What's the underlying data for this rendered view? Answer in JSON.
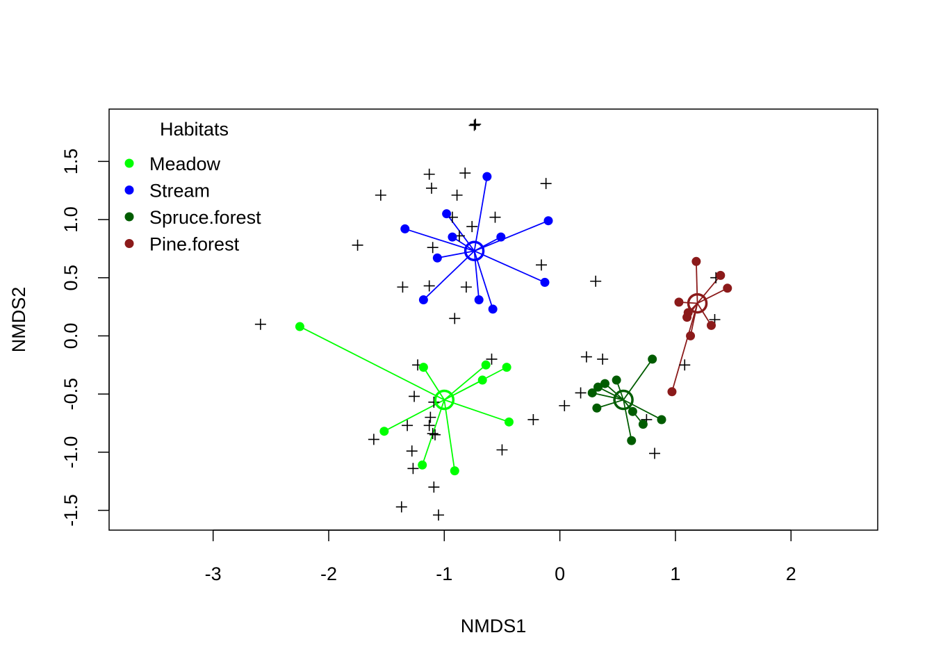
{
  "chart_data": {
    "type": "scatter",
    "title": "",
    "xlabel": "NMDS1",
    "ylabel": "NMDS2",
    "xlim": [
      -3.9,
      2.75
    ],
    "ylim": [
      -1.67,
      1.95
    ],
    "x_ticks": [
      -3,
      -2,
      -1,
      0,
      1,
      2
    ],
    "y_ticks": [
      -1.5,
      -1.0,
      -0.5,
      0.0,
      0.5,
      1.0,
      1.5
    ],
    "x_tick_labels": [
      "-3",
      "-2",
      "-1",
      "0",
      "1",
      "2"
    ],
    "y_tick_labels": [
      "-1.5",
      "-1.0",
      "-0.5",
      "0.0",
      "0.5",
      "1.0",
      "1.5"
    ],
    "grid": false,
    "legend": {
      "title": "Habitats",
      "placement": "top-left",
      "entries": [
        {
          "label": "Meadow",
          "color": "#00ff00"
        },
        {
          "label": "Stream",
          "color": "#0000ff"
        },
        {
          "label": "Spruce.forest",
          "color": "#005c00"
        },
        {
          "label": "Pine.forest",
          "color": "#8b1a1a"
        }
      ]
    },
    "series": [
      {
        "name": "Meadow",
        "color": "#00ff00",
        "centroid": [
          -1.0,
          -0.55
        ],
        "points": [
          [
            -2.25,
            0.08
          ],
          [
            -1.18,
            -0.27
          ],
          [
            -0.64,
            -0.25
          ],
          [
            -0.46,
            -0.27
          ],
          [
            -0.67,
            -0.38
          ],
          [
            -0.44,
            -0.74
          ],
          [
            -1.52,
            -0.82
          ],
          [
            -1.19,
            -1.11
          ],
          [
            -0.91,
            -1.16
          ]
        ]
      },
      {
        "name": "Stream",
        "color": "#0000ff",
        "centroid": [
          -0.74,
          0.73
        ],
        "points": [
          [
            -0.63,
            1.37
          ],
          [
            -0.98,
            1.05
          ],
          [
            -1.34,
            0.92
          ],
          [
            -0.93,
            0.85
          ],
          [
            -1.06,
            0.67
          ],
          [
            -0.51,
            0.85
          ],
          [
            -0.1,
            0.99
          ],
          [
            -0.13,
            0.46
          ],
          [
            -1.18,
            0.31
          ],
          [
            -0.7,
            0.31
          ],
          [
            -0.58,
            0.23
          ]
        ]
      },
      {
        "name": "Spruce.forest",
        "color": "#005c00",
        "centroid": [
          0.55,
          -0.55
        ],
        "points": [
          [
            0.8,
            -0.2
          ],
          [
            0.49,
            -0.38
          ],
          [
            0.39,
            -0.41
          ],
          [
            0.33,
            -0.44
          ],
          [
            0.28,
            -0.49
          ],
          [
            0.32,
            -0.62
          ],
          [
            0.63,
            -0.65
          ],
          [
            0.72,
            -0.76
          ],
          [
            0.88,
            -0.72
          ],
          [
            0.62,
            -0.9
          ]
        ]
      },
      {
        "name": "Pine.forest",
        "color": "#8b1a1a",
        "centroid": [
          1.19,
          0.28
        ],
        "points": [
          [
            1.18,
            0.64
          ],
          [
            1.39,
            0.52
          ],
          [
            1.45,
            0.41
          ],
          [
            1.03,
            0.29
          ],
          [
            1.11,
            0.2
          ],
          [
            1.1,
            0.16
          ],
          [
            1.31,
            0.09
          ],
          [
            1.13,
            0.0
          ],
          [
            0.97,
            -0.48
          ]
        ]
      },
      {
        "name": "",
        "color": "#000000",
        "marker": "plus",
        "points": [
          [
            -0.73,
            1.82
          ],
          [
            -0.74,
            1.81
          ],
          [
            -1.13,
            1.39
          ],
          [
            -0.82,
            1.4
          ],
          [
            -1.11,
            1.27
          ],
          [
            -0.89,
            1.21
          ],
          [
            -0.12,
            1.31
          ],
          [
            -1.55,
            1.21
          ],
          [
            -0.93,
            1.02
          ],
          [
            -0.56,
            1.02
          ],
          [
            -0.76,
            0.94
          ],
          [
            -0.87,
            0.86
          ],
          [
            -1.75,
            0.78
          ],
          [
            -1.1,
            0.76
          ],
          [
            -0.16,
            0.61
          ],
          [
            -1.36,
            0.42
          ],
          [
            -1.13,
            0.43
          ],
          [
            -0.81,
            0.42
          ],
          [
            -0.91,
            0.15
          ],
          [
            0.31,
            0.47
          ],
          [
            1.35,
            0.5
          ],
          [
            1.34,
            0.14
          ],
          [
            -2.59,
            0.1
          ],
          [
            0.23,
            -0.18
          ],
          [
            0.37,
            -0.2
          ],
          [
            1.08,
            -0.25
          ],
          [
            -0.59,
            -0.2
          ],
          [
            -1.23,
            -0.25
          ],
          [
            -1.26,
            -0.52
          ],
          [
            0.18,
            -0.49
          ],
          [
            0.04,
            -0.6
          ],
          [
            -1.09,
            -0.57
          ],
          [
            -1.12,
            -0.7
          ],
          [
            -0.23,
            -0.72
          ],
          [
            0.75,
            -0.72
          ],
          [
            -1.32,
            -0.77
          ],
          [
            -1.13,
            -0.77
          ],
          [
            -1.1,
            -0.84
          ],
          [
            -1.08,
            -0.85
          ],
          [
            -1.61,
            -0.89
          ],
          [
            -1.28,
            -0.99
          ],
          [
            -0.5,
            -0.98
          ],
          [
            0.82,
            -1.01
          ],
          [
            -1.27,
            -1.14
          ],
          [
            -1.09,
            -1.3
          ],
          [
            -1.37,
            -1.47
          ],
          [
            -1.05,
            -1.54
          ]
        ]
      }
    ]
  }
}
